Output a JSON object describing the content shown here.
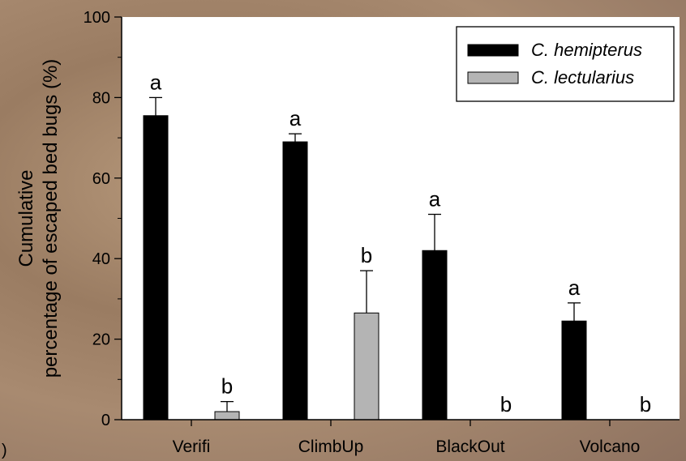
{
  "chart_data": {
    "type": "bar",
    "categories": [
      "Verifi",
      "ClimbUp",
      "BlackOut",
      "Volcano"
    ],
    "series": [
      {
        "name": "C. hemipterus",
        "color": "#000000",
        "values": [
          75.5,
          69,
          42,
          24.5
        ],
        "errors": [
          4.5,
          2,
          9,
          4.5
        ],
        "significance": [
          "a",
          "a",
          "a",
          "a"
        ]
      },
      {
        "name": "C. lectularius",
        "color": "#b4b4b4",
        "values": [
          2,
          26.5,
          0,
          0
        ],
        "errors": [
          2.5,
          10.5,
          0,
          0
        ],
        "significance": [
          "b",
          "b",
          "b",
          "b"
        ]
      }
    ],
    "ylabel_line1": "Cumulative",
    "ylabel_line2": "percentage of escaped bed bugs (%)",
    "ylim": [
      0,
      100
    ],
    "yticks": [
      "0",
      "20",
      "40",
      "60",
      "80",
      "100"
    ],
    "grid": false,
    "legend_position": "top-right"
  },
  "corner_mark": ")"
}
